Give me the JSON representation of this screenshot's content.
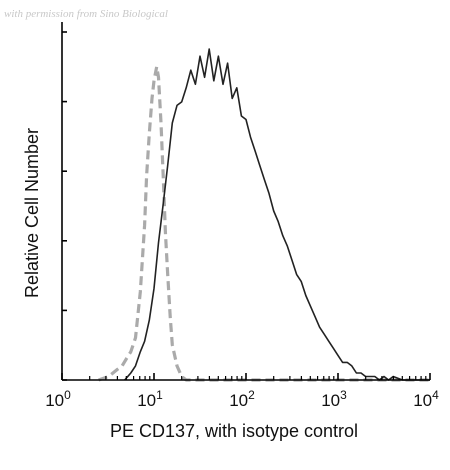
{
  "watermark": "with permission from Sino Biological",
  "chart_data": {
    "type": "line",
    "xlabel": "PE CD137, with isotype control",
    "ylabel": "Relative Cell Number",
    "x_scale": "log",
    "xlim": [
      1,
      10000
    ],
    "ylim": [
      0,
      100
    ],
    "x_ticks": [
      {
        "value": 1,
        "base": "10",
        "exp": "0"
      },
      {
        "value": 10,
        "base": "10",
        "exp": "1"
      },
      {
        "value": 100,
        "base": "10",
        "exp": "2"
      },
      {
        "value": 1000,
        "base": "10",
        "exp": "3"
      },
      {
        "value": 10000,
        "base": "10",
        "exp": "4"
      }
    ],
    "y_tick_count": 6,
    "grid": false,
    "series": [
      {
        "color": "#222222",
        "dash": "solid",
        "x": [
          4.8,
          5.6,
          6.3,
          7.1,
          7.9,
          8.9,
          10.0,
          11.2,
          12.6,
          14.1,
          15.8,
          17.8,
          20.0,
          22.4,
          25.1,
          28.2,
          31.6,
          35.5,
          39.8,
          44.7,
          50.1,
          56.2,
          63.1,
          70.8,
          79.4,
          89.1,
          100,
          112,
          126,
          141,
          158,
          178,
          200,
          224,
          251,
          282,
          316,
          355,
          398,
          447,
          501,
          562,
          631,
          708,
          794,
          891,
          1000,
          1122,
          1259,
          1413,
          1585,
          1778,
          1995,
          2239,
          2512,
          2818,
          3162,
          3548,
          3981,
          5012,
          6310,
          7943,
          10000
        ],
        "y": [
          0,
          2,
          4,
          8,
          11,
          17,
          26,
          39,
          50,
          61,
          73,
          78,
          79,
          83,
          88,
          84,
          92,
          86,
          94,
          85,
          92,
          84,
          90,
          80,
          83,
          75,
          74,
          69,
          65,
          61,
          57,
          53,
          48,
          45,
          41,
          38,
          34,
          30,
          28,
          24,
          21,
          18,
          15,
          13,
          11,
          9,
          7,
          5,
          5,
          4,
          2,
          2,
          1,
          1,
          1,
          0,
          1,
          0,
          1,
          0,
          0,
          0,
          0
        ]
      },
      {
        "color": "#aaaaaa",
        "dash": "dashed",
        "x": [
          2.5,
          3.2,
          4.0,
          4.5,
          5.0,
          5.6,
          6.3,
          7.1,
          7.9,
          8.3,
          8.9,
          9.5,
          10.0,
          10.7,
          11.2,
          11.9,
          12.6,
          13.3,
          14.1,
          15.0,
          15.8,
          17.8,
          20.0,
          22.4,
          28.2,
          39.8,
          63.1,
          100,
          200,
          500,
          1000,
          3000,
          10000
        ],
        "y": [
          0,
          1,
          3,
          4,
          6,
          8,
          12,
          25,
          44,
          58,
          70,
          80,
          85,
          89,
          86,
          73,
          58,
          42,
          30,
          18,
          10,
          4,
          1,
          0,
          0,
          0,
          0,
          0,
          0,
          0,
          0,
          0,
          0
        ]
      }
    ]
  }
}
